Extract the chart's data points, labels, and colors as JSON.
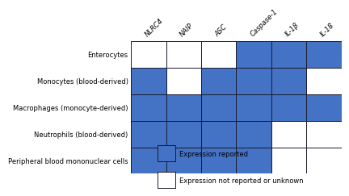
{
  "columns": [
    "NLRC4",
    "NAIP",
    "ASC",
    "Caspase-1",
    "IL-1β",
    "IL-18"
  ],
  "rows": [
    "Enterocytes",
    "Monocytes (blood-derived)",
    "Macrophages (monocyte-derived)",
    "Neutrophils (blood-derived)",
    "Peripheral blood mononuclear cells"
  ],
  "matrix": [
    [
      0,
      0,
      0,
      1,
      1,
      1
    ],
    [
      1,
      0,
      1,
      1,
      1,
      0
    ],
    [
      1,
      1,
      1,
      1,
      1,
      1
    ],
    [
      1,
      1,
      1,
      1,
      0,
      0
    ],
    [
      1,
      1,
      1,
      1,
      0,
      0
    ]
  ],
  "blue_color": "#4472C4",
  "white_color": "#FFFFFF",
  "grid_line_color": "#1a1a2e",
  "legend_reported": "Expression reported",
  "legend_not_reported": "Expression not reported or unknown",
  "col_label_fontsize": 6.0,
  "row_label_fontsize": 6.0,
  "legend_fontsize": 6.0
}
